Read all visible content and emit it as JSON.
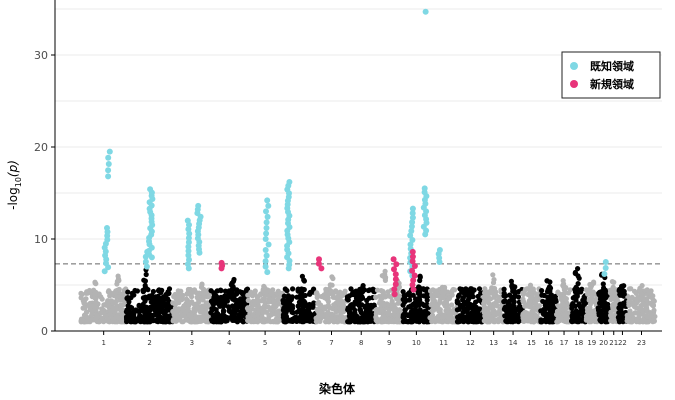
{
  "chart_data": {
    "type": "scatter",
    "title": "",
    "xlabel": "染色体",
    "ylabel_prefix": "-log",
    "ylabel_subscript": "10",
    "ylabel_suffix": "(p)",
    "ylim": [
      0,
      35
    ],
    "y_ticks": [
      0,
      10,
      20,
      30
    ],
    "grid": true,
    "significance_threshold": 7.3,
    "legend_position": "top-right",
    "legend": [
      {
        "label": "既知領域",
        "color": "#7fd8e4"
      },
      {
        "label": "新規領域",
        "color": "#e8347a"
      }
    ],
    "base_colors": [
      "#b3b3b3",
      "#000000"
    ],
    "chromosomes": [
      {
        "label": "1",
        "start": 0,
        "end": 12.5
      },
      {
        "label": "2",
        "start": 12.5,
        "end": 25.3
      },
      {
        "label": "3",
        "start": 25.3,
        "end": 35.8
      },
      {
        "label": "4",
        "start": 35.8,
        "end": 45.9
      },
      {
        "label": "5",
        "start": 45.9,
        "end": 55.6
      },
      {
        "label": "6",
        "start": 55.6,
        "end": 64.8
      },
      {
        "label": "7",
        "start": 64.8,
        "end": 73.3
      },
      {
        "label": "8",
        "start": 73.3,
        "end": 81.2
      },
      {
        "label": "9",
        "start": 81.2,
        "end": 88.7
      },
      {
        "label": "10",
        "start": 88.7,
        "end": 96.2
      },
      {
        "label": "11",
        "start": 96.2,
        "end": 103.7
      },
      {
        "label": "12",
        "start": 103.7,
        "end": 111.0
      },
      {
        "label": "13",
        "start": 111.0,
        "end": 116.5
      },
      {
        "label": "14",
        "start": 116.5,
        "end": 121.7
      },
      {
        "label": "15",
        "start": 121.7,
        "end": 126.7
      },
      {
        "label": "16",
        "start": 126.7,
        "end": 131.1
      },
      {
        "label": "17",
        "start": 131.1,
        "end": 135.2
      },
      {
        "label": "18",
        "start": 135.2,
        "end": 139.2
      },
      {
        "label": "19",
        "start": 139.2,
        "end": 142.4
      },
      {
        "label": "20",
        "start": 142.4,
        "end": 145.7
      },
      {
        "label": "21",
        "start": 145.7,
        "end": 148.0
      },
      {
        "label": "22",
        "start": 148.0,
        "end": 150.5
      },
      {
        "label": "23",
        "start": 150.5,
        "end": 158.5
      }
    ],
    "baseline_peaks": [
      {
        "chr": 0,
        "pos": 0.3,
        "y": 5.6
      },
      {
        "chr": 0,
        "pos": 0.8,
        "y": 6.0
      },
      {
        "chr": 1,
        "pos": 0.4,
        "y": 6.9
      },
      {
        "chr": 2,
        "pos": 0.8,
        "y": 5.2
      },
      {
        "chr": 3,
        "pos": 0.6,
        "y": 5.6
      },
      {
        "chr": 4,
        "pos": 0.5,
        "y": 5.0
      },
      {
        "chr": 5,
        "pos": 0.6,
        "y": 6.2
      },
      {
        "chr": 6,
        "pos": 0.5,
        "y": 6.0
      },
      {
        "chr": 7,
        "pos": 0.5,
        "y": 5.0
      },
      {
        "chr": 8,
        "pos": 0.3,
        "y": 6.8
      },
      {
        "chr": 8,
        "pos": 0.8,
        "y": 6.4
      },
      {
        "chr": 9,
        "pos": 0.6,
        "y": 6.0
      },
      {
        "chr": 10,
        "pos": 0.5,
        "y": 5.0
      },
      {
        "chr": 11,
        "pos": 0.5,
        "y": 4.6
      },
      {
        "chr": 12,
        "pos": 0.5,
        "y": 6.2
      },
      {
        "chr": 13,
        "pos": 0.5,
        "y": 5.4
      },
      {
        "chr": 14,
        "pos": 0.5,
        "y": 5.0
      },
      {
        "chr": 15,
        "pos": 0.5,
        "y": 6.0
      },
      {
        "chr": 16,
        "pos": 0.5,
        "y": 5.6
      },
      {
        "chr": 17,
        "pos": 0.4,
        "y": 6.8
      },
      {
        "chr": 18,
        "pos": 0.5,
        "y": 5.6
      },
      {
        "chr": 19,
        "pos": 0.5,
        "y": 6.6
      },
      {
        "chr": 20,
        "pos": 0.5,
        "y": 5.4
      },
      {
        "chr": 21,
        "pos": 0.5,
        "y": 5.2
      },
      {
        "chr": 22,
        "pos": 0.5,
        "y": 5.0
      }
    ],
    "signal_columns": [
      {
        "type": "known",
        "x": 7.0,
        "min": 6.5,
        "max": 11.2,
        "n": 12
      },
      {
        "type": "known",
        "x": 7.6,
        "min": 16.8,
        "max": 19.5,
        "n": 5
      },
      {
        "type": "known",
        "x": 17.8,
        "min": 7.0,
        "max": 8.6,
        "n": 4
      },
      {
        "type": "known",
        "x": 19.2,
        "min": 8.0,
        "max": 15.4,
        "n": 22
      },
      {
        "type": "known",
        "x": 29.8,
        "min": 6.8,
        "max": 12.0,
        "n": 12
      },
      {
        "type": "known",
        "x": 32.5,
        "min": 8.5,
        "max": 13.6,
        "n": 14
      },
      {
        "type": "novel",
        "x": 38.7,
        "min": 6.8,
        "max": 7.4,
        "n": 3
      },
      {
        "type": "known",
        "x": 51.3,
        "min": 6.4,
        "max": 14.2,
        "n": 14
      },
      {
        "type": "known",
        "x": 57.2,
        "min": 6.8,
        "max": 16.2,
        "n": 24
      },
      {
        "type": "novel",
        "x": 66.0,
        "min": 6.8,
        "max": 7.8,
        "n": 3
      },
      {
        "type": "novel",
        "x": 86.5,
        "min": 4.0,
        "max": 7.8,
        "n": 8
      },
      {
        "type": "known",
        "x": 91.2,
        "min": 6.0,
        "max": 13.3,
        "n": 16
      },
      {
        "type": "novel",
        "x": 91.6,
        "min": 4.5,
        "max": 8.6,
        "n": 9
      },
      {
        "type": "known",
        "x": 94.8,
        "min": 10.5,
        "max": 15.5,
        "n": 13
      },
      {
        "type": "known",
        "x": 98.5,
        "min": 7.5,
        "max": 8.8,
        "n": 4
      },
      {
        "type": "known",
        "x": 144.5,
        "min": 6.2,
        "max": 7.5,
        "n": 3
      }
    ],
    "points": [
      {
        "x": 95.0,
        "y": 34.7,
        "type": "known"
      }
    ]
  }
}
